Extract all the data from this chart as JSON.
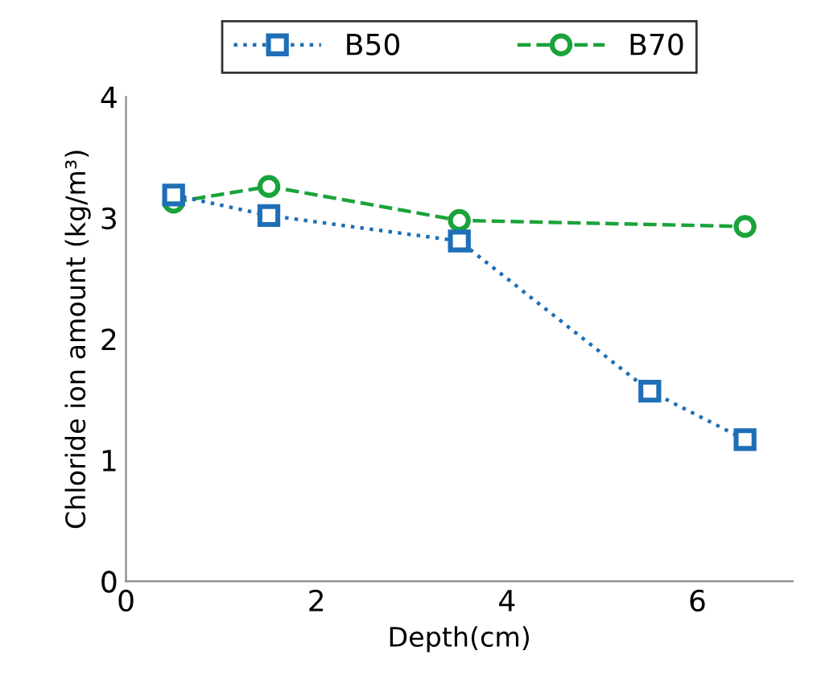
{
  "chart_data": {
    "type": "line",
    "xlabel": "Depth(cm)",
    "ylabel": "Chloride ion amount (kg/m³)",
    "xlim": [
      0,
      7
    ],
    "xticks": [
      0,
      2,
      4,
      6
    ],
    "ylim": [
      0,
      4
    ],
    "yticks": [
      0,
      1,
      2,
      3,
      4
    ],
    "grid": false,
    "legend": "top",
    "series": [
      {
        "name": "B50",
        "color": "#1f6fb8",
        "marker": "square",
        "line_style": "dotted",
        "x": [
          0.5,
          1.5,
          3.5,
          5.5,
          6.5
        ],
        "values": [
          3.19,
          3.02,
          2.81,
          1.57,
          1.17
        ]
      },
      {
        "name": "B70",
        "color": "#1aa33a",
        "marker": "circle",
        "line_style": "dashed",
        "x": [
          0.5,
          1.5,
          3.5,
          6.5
        ],
        "values": [
          3.13,
          3.26,
          2.98,
          2.93
        ]
      }
    ]
  }
}
